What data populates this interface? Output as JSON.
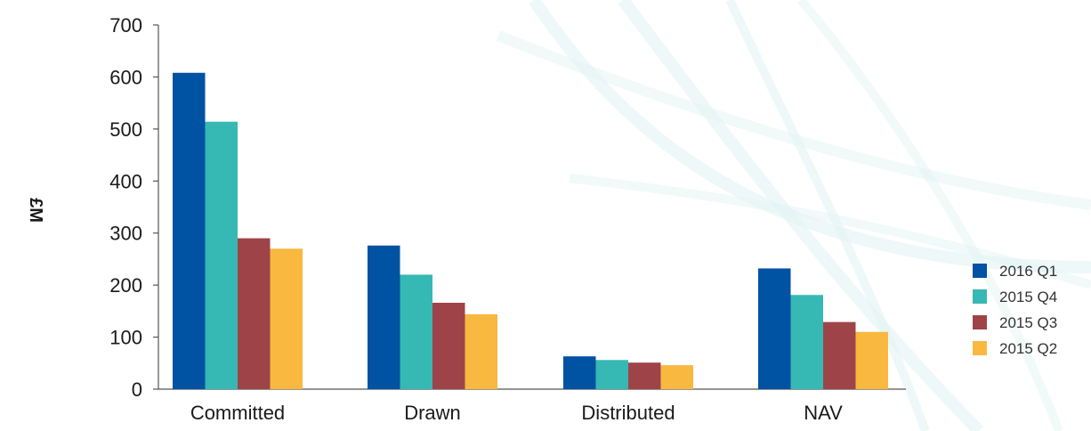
{
  "chart_data": {
    "type": "bar",
    "title": "",
    "xlabel": "",
    "ylabel": "£M",
    "ylim": [
      0,
      700
    ],
    "yticks": [
      0,
      100,
      200,
      300,
      400,
      500,
      600,
      700
    ],
    "grid": false,
    "legend_position": "right",
    "categories": [
      "Committed",
      "Drawn",
      "Distributed",
      "NAV"
    ],
    "series": [
      {
        "name": "2016 Q1",
        "color": "#0052A2",
        "values": [
          608,
          276,
          63,
          232
        ]
      },
      {
        "name": "2015 Q4",
        "color": "#36B8B4",
        "values": [
          514,
          220,
          56,
          181
        ]
      },
      {
        "name": "2015 Q3",
        "color": "#9E4449",
        "values": [
          290,
          166,
          51,
          129
        ]
      },
      {
        "name": "2015 Q2",
        "color": "#F9B840",
        "values": [
          270,
          144,
          46,
          110
        ]
      }
    ]
  }
}
